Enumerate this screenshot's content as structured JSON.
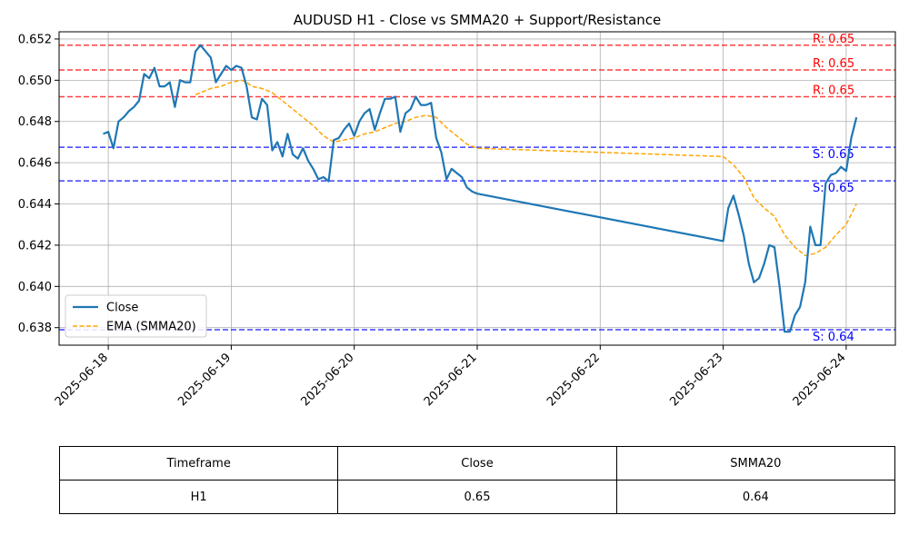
{
  "chart_data": {
    "type": "line",
    "title": "AUDUSD H1 - Close vs SMMA20 + Support/Resistance",
    "xlabel": "",
    "ylabel": "",
    "x_ticks": [
      "2025-06-18",
      "2025-06-19",
      "2025-06-20",
      "2025-06-21",
      "2025-06-22",
      "2025-06-23",
      "2025-06-24"
    ],
    "y_ticks": [
      "0.638",
      "0.640",
      "0.642",
      "0.644",
      "0.646",
      "0.648",
      "0.650",
      "0.652"
    ],
    "xlim": [
      "2025-06-17T14:24",
      "2025-06-24T09:36"
    ],
    "ylim": [
      0.63715,
      0.65235
    ],
    "grid": true,
    "legend_position": "lower-left",
    "series": [
      {
        "name": "Close",
        "color": "#1f77b4",
        "style": "solid",
        "points": [
          [
            "2025-06-17T23:00",
            0.6474
          ],
          [
            "2025-06-18T00:00",
            0.6475
          ],
          [
            "2025-06-18T01:00",
            0.6467
          ],
          [
            "2025-06-18T02:00",
            0.648
          ],
          [
            "2025-06-18T03:00",
            0.6482
          ],
          [
            "2025-06-18T04:00",
            0.6485
          ],
          [
            "2025-06-18T05:00",
            0.6487
          ],
          [
            "2025-06-18T06:00",
            0.649
          ],
          [
            "2025-06-18T07:00",
            0.6503
          ],
          [
            "2025-06-18T08:00",
            0.6501
          ],
          [
            "2025-06-18T09:00",
            0.6506
          ],
          [
            "2025-06-18T10:00",
            0.6497
          ],
          [
            "2025-06-18T11:00",
            0.6497
          ],
          [
            "2025-06-18T12:00",
            0.6499
          ],
          [
            "2025-06-18T13:00",
            0.6487
          ],
          [
            "2025-06-18T14:00",
            0.65
          ],
          [
            "2025-06-18T15:00",
            0.6499
          ],
          [
            "2025-06-18T16:00",
            0.6499
          ],
          [
            "2025-06-18T17:00",
            0.6514
          ],
          [
            "2025-06-18T18:00",
            0.6517
          ],
          [
            "2025-06-18T19:00",
            0.6514
          ],
          [
            "2025-06-18T20:00",
            0.6511
          ],
          [
            "2025-06-18T21:00",
            0.6499
          ],
          [
            "2025-06-18T22:00",
            0.6503
          ],
          [
            "2025-06-18T23:00",
            0.6507
          ],
          [
            "2025-06-19T00:00",
            0.6505
          ],
          [
            "2025-06-19T01:00",
            0.6507
          ],
          [
            "2025-06-19T02:00",
            0.6506
          ],
          [
            "2025-06-19T03:00",
            0.6497
          ],
          [
            "2025-06-19T04:00",
            0.6482
          ],
          [
            "2025-06-19T05:00",
            0.6481
          ],
          [
            "2025-06-19T06:00",
            0.6491
          ],
          [
            "2025-06-19T07:00",
            0.6488
          ],
          [
            "2025-06-19T08:00",
            0.6466
          ],
          [
            "2025-06-19T09:00",
            0.647
          ],
          [
            "2025-06-19T10:00",
            0.6463
          ],
          [
            "2025-06-19T11:00",
            0.6474
          ],
          [
            "2025-06-19T12:00",
            0.6464
          ],
          [
            "2025-06-19T13:00",
            0.6462
          ],
          [
            "2025-06-19T14:00",
            0.6467
          ],
          [
            "2025-06-19T15:00",
            0.6461
          ],
          [
            "2025-06-19T16:00",
            0.6457
          ],
          [
            "2025-06-19T17:00",
            0.6452
          ],
          [
            "2025-06-19T18:00",
            0.6453
          ],
          [
            "2025-06-19T19:00",
            0.6451
          ],
          [
            "2025-06-19T20:00",
            0.6471
          ],
          [
            "2025-06-19T21:00",
            0.6472
          ],
          [
            "2025-06-19T22:00",
            0.6476
          ],
          [
            "2025-06-19T23:00",
            0.6479
          ],
          [
            "2025-06-20T00:00",
            0.6473
          ],
          [
            "2025-06-20T01:00",
            0.648
          ],
          [
            "2025-06-20T02:00",
            0.6484
          ],
          [
            "2025-06-20T03:00",
            0.6486
          ],
          [
            "2025-06-20T04:00",
            0.6476
          ],
          [
            "2025-06-20T05:00",
            0.6484
          ],
          [
            "2025-06-20T06:00",
            0.6491
          ],
          [
            "2025-06-20T07:00",
            0.6491
          ],
          [
            "2025-06-20T08:00",
            0.6492
          ],
          [
            "2025-06-20T09:00",
            0.6475
          ],
          [
            "2025-06-20T10:00",
            0.6484
          ],
          [
            "2025-06-20T11:00",
            0.6486
          ],
          [
            "2025-06-20T12:00",
            0.6492
          ],
          [
            "2025-06-20T13:00",
            0.6488
          ],
          [
            "2025-06-20T14:00",
            0.6488
          ],
          [
            "2025-06-20T15:00",
            0.6489
          ],
          [
            "2025-06-20T16:00",
            0.6472
          ],
          [
            "2025-06-20T17:00",
            0.6465
          ],
          [
            "2025-06-20T18:00",
            0.6452
          ],
          [
            "2025-06-20T19:00",
            0.6457
          ],
          [
            "2025-06-20T20:00",
            0.6455
          ],
          [
            "2025-06-20T21:00",
            0.6453
          ],
          [
            "2025-06-20T22:00",
            0.6448
          ],
          [
            "2025-06-20T23:00",
            0.6446
          ],
          [
            "2025-06-21T00:00",
            0.6445
          ],
          [
            "2025-06-23T00:00",
            0.6422
          ],
          [
            "2025-06-23T01:00",
            0.6438
          ],
          [
            "2025-06-23T02:00",
            0.6444
          ],
          [
            "2025-06-23T03:00",
            0.6435
          ],
          [
            "2025-06-23T04:00",
            0.6425
          ],
          [
            "2025-06-23T05:00",
            0.6411
          ],
          [
            "2025-06-23T06:00",
            0.6402
          ],
          [
            "2025-06-23T07:00",
            0.6404
          ],
          [
            "2025-06-23T08:00",
            0.6411
          ],
          [
            "2025-06-23T09:00",
            0.642
          ],
          [
            "2025-06-23T10:00",
            0.6419
          ],
          [
            "2025-06-23T11:00",
            0.64
          ],
          [
            "2025-06-23T12:00",
            0.6378
          ],
          [
            "2025-06-23T13:00",
            0.6378
          ],
          [
            "2025-06-23T14:00",
            0.6386
          ],
          [
            "2025-06-23T15:00",
            0.639
          ],
          [
            "2025-06-23T16:00",
            0.6402
          ],
          [
            "2025-06-23T17:00",
            0.6429
          ],
          [
            "2025-06-23T18:00",
            0.642
          ],
          [
            "2025-06-23T19:00",
            0.642
          ],
          [
            "2025-06-23T20:00",
            0.645
          ],
          [
            "2025-06-23T21:00",
            0.6454
          ],
          [
            "2025-06-23T22:00",
            0.6455
          ],
          [
            "2025-06-23T23:00",
            0.6458
          ],
          [
            "2025-06-24T00:00",
            0.6456
          ],
          [
            "2025-06-24T01:00",
            0.6472
          ],
          [
            "2025-06-24T02:00",
            0.6482
          ]
        ]
      },
      {
        "name": "EMA (SMMA20)",
        "color": "#ffa500",
        "style": "dashed",
        "points": [
          [
            "2025-06-18T17:00",
            0.6493
          ],
          [
            "2025-06-18T18:00",
            0.6494
          ],
          [
            "2025-06-18T20:00",
            0.6496
          ],
          [
            "2025-06-18T22:00",
            0.6497
          ],
          [
            "2025-06-19T00:00",
            0.6499
          ],
          [
            "2025-06-19T02:00",
            0.65
          ],
          [
            "2025-06-19T03:00",
            0.6499
          ],
          [
            "2025-06-19T04:00",
            0.6497
          ],
          [
            "2025-06-19T06:00",
            0.6496
          ],
          [
            "2025-06-19T08:00",
            0.6494
          ],
          [
            "2025-06-19T10:00",
            0.649
          ],
          [
            "2025-06-19T12:00",
            0.6486
          ],
          [
            "2025-06-19T14:00",
            0.6482
          ],
          [
            "2025-06-19T16:00",
            0.6478
          ],
          [
            "2025-06-19T18:00",
            0.6473
          ],
          [
            "2025-06-19T20:00",
            0.647
          ],
          [
            "2025-06-19T22:00",
            0.6471
          ],
          [
            "2025-06-20T00:00",
            0.6472
          ],
          [
            "2025-06-20T02:00",
            0.6474
          ],
          [
            "2025-06-20T04:00",
            0.6475
          ],
          [
            "2025-06-20T06:00",
            0.6477
          ],
          [
            "2025-06-20T08:00",
            0.6479
          ],
          [
            "2025-06-20T10:00",
            0.648
          ],
          [
            "2025-06-20T12:00",
            0.6482
          ],
          [
            "2025-06-20T14:00",
            0.6483
          ],
          [
            "2025-06-20T16:00",
            0.6482
          ],
          [
            "2025-06-20T18:00",
            0.6477
          ],
          [
            "2025-06-20T20:00",
            0.6473
          ],
          [
            "2025-06-20T22:00",
            0.6469
          ],
          [
            "2025-06-21T00:00",
            0.6467
          ],
          [
            "2025-06-23T00:00",
            0.6463
          ],
          [
            "2025-06-23T02:00",
            0.6459
          ],
          [
            "2025-06-23T04:00",
            0.6453
          ],
          [
            "2025-06-23T06:00",
            0.6443
          ],
          [
            "2025-06-23T08:00",
            0.6438
          ],
          [
            "2025-06-23T10:00",
            0.6434
          ],
          [
            "2025-06-23T12:00",
            0.6425
          ],
          [
            "2025-06-23T14:00",
            0.6419
          ],
          [
            "2025-06-23T16:00",
            0.6415
          ],
          [
            "2025-06-23T18:00",
            0.6416
          ],
          [
            "2025-06-23T20:00",
            0.6419
          ],
          [
            "2025-06-23T22:00",
            0.6425
          ],
          [
            "2025-06-24T00:00",
            0.643
          ],
          [
            "2025-06-24T02:00",
            0.644
          ]
        ]
      }
    ],
    "horizontal_lines": [
      {
        "kind": "resistance",
        "value": 0.6517,
        "label": "R: 0.65",
        "color": "#ff0000"
      },
      {
        "kind": "resistance",
        "value": 0.6505,
        "label": "R: 0.65",
        "color": "#ff0000"
      },
      {
        "kind": "resistance",
        "value": 0.6492,
        "label": "R: 0.65",
        "color": "#ff0000"
      },
      {
        "kind": "support",
        "value": 0.64675,
        "label": "S: 0.65",
        "color": "#0000ff"
      },
      {
        "kind": "support",
        "value": 0.64512,
        "label": "S: 0.65",
        "color": "#0000ff"
      },
      {
        "kind": "support",
        "value": 0.6379,
        "label": "S: 0.64",
        "color": "#0000ff"
      }
    ],
    "legend": [
      {
        "label": "Close",
        "color": "#1f77b4",
        "style": "solid"
      },
      {
        "label": "EMA (SMMA20)",
        "color": "#ffa500",
        "style": "dashed"
      }
    ]
  },
  "table": {
    "headers": [
      "Timeframe",
      "Close",
      "SMMA20"
    ],
    "rows": [
      [
        "H1",
        "0.65",
        "0.64"
      ]
    ]
  }
}
